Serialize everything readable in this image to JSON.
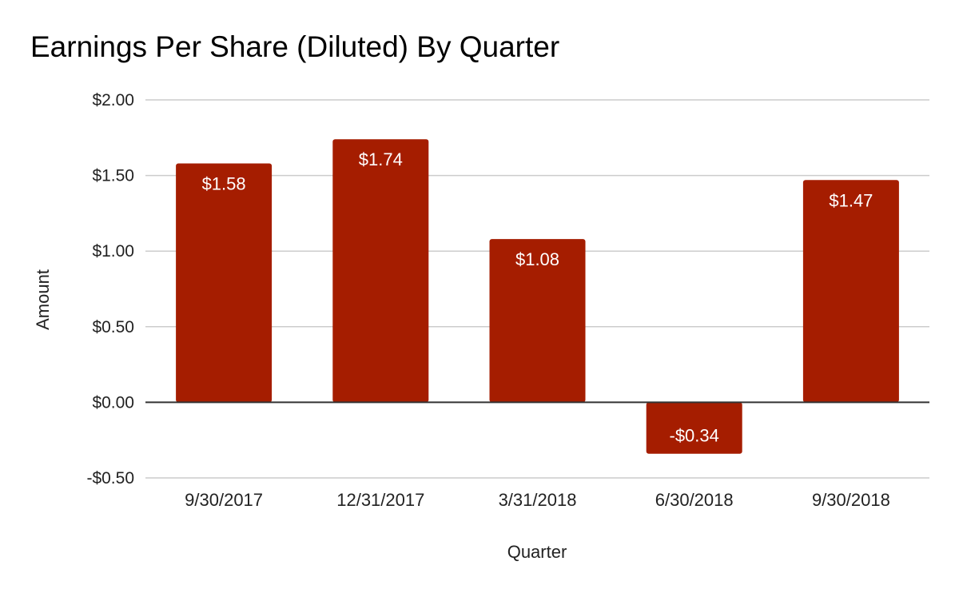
{
  "chart_data": {
    "type": "bar",
    "title": "Earnings Per Share (Diluted) By Quarter",
    "xlabel": "Quarter",
    "ylabel": "Amount",
    "categories": [
      "9/30/2017",
      "12/31/2017",
      "3/31/2018",
      "6/30/2018",
      "9/30/2018"
    ],
    "values": [
      1.58,
      1.74,
      1.08,
      -0.34,
      1.47
    ],
    "value_labels": [
      "$1.58",
      "$1.74",
      "$1.08",
      "-$0.34",
      "$1.47"
    ],
    "ylim": [
      -0.5,
      2.0
    ],
    "yticks": [
      -0.5,
      0,
      0.5,
      1.0,
      1.5,
      2.0
    ],
    "ytick_labels": [
      "-$0.50",
      "$0.00",
      "$0.50",
      "$1.00",
      "$1.50",
      "$2.00"
    ],
    "grid": true,
    "legend": "none",
    "bar_color": "#a51d00",
    "gridline_color": "#cccccc",
    "zero_line_color": "#333333",
    "label_color_inside": "#ffffff"
  }
}
